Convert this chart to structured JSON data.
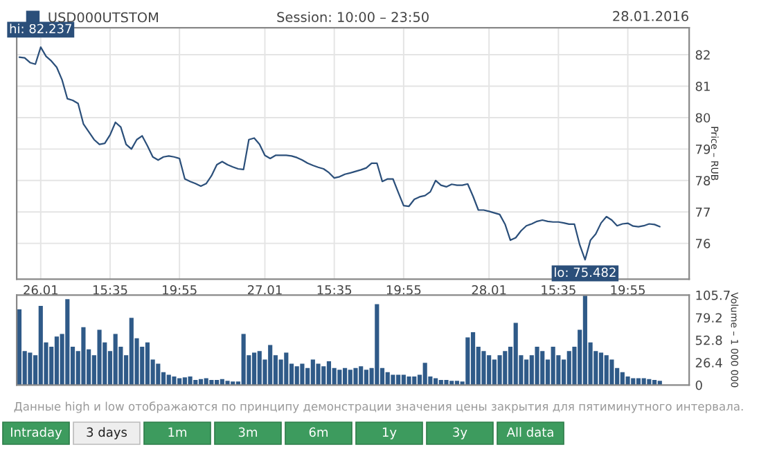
{
  "chart_data": [
    {
      "type": "line",
      "title": "Session: 10:00 – 23:50",
      "legend": "top left",
      "grid": true,
      "ylabel": "Price – RUB",
      "categories": [
        null,
        null,
        null,
        null,
        "26.01",
        null,
        null,
        null,
        null,
        null,
        null,
        null,
        null,
        null,
        null,
        null,
        null,
        "15:35",
        null,
        null,
        null,
        null,
        null,
        null,
        null,
        null,
        null,
        null,
        null,
        null,
        "19:55",
        null,
        null,
        null,
        null,
        null,
        null,
        null,
        null,
        null,
        null,
        null,
        null,
        null,
        null,
        null,
        "27.01",
        null,
        null,
        null,
        null,
        null,
        null,
        null,
        null,
        null,
        null,
        null,
        null,
        "15:35",
        null,
        null,
        null,
        null,
        null,
        null,
        null,
        null,
        null,
        null,
        null,
        null,
        "19:55",
        null,
        null,
        null,
        null,
        null,
        null,
        null,
        null,
        null,
        null,
        null,
        null,
        null,
        null,
        null,
        "28.01",
        null,
        null,
        null,
        null,
        null,
        null,
        null,
        null,
        null,
        null,
        null,
        null,
        "15:35",
        null,
        null,
        null,
        null,
        null,
        null,
        null,
        null,
        null,
        null,
        null,
        null,
        "19:55",
        null,
        null,
        null,
        null,
        null,
        null,
        null,
        null,
        null,
        null,
        null
      ],
      "series": [
        {
          "name": "USD000UTSTOM",
          "color": "#2b4f7a",
          "values": [
            81.92,
            81.9,
            81.75,
            81.7,
            82.24,
            81.95,
            81.8,
            81.6,
            81.2,
            80.6,
            80.55,
            80.45,
            79.8,
            79.55,
            79.3,
            79.15,
            79.18,
            79.45,
            79.85,
            79.7,
            79.15,
            79.0,
            79.3,
            79.42,
            79.1,
            78.75,
            78.65,
            78.75,
            78.78,
            78.75,
            78.7,
            78.05,
            77.97,
            77.9,
            77.82,
            77.9,
            78.15,
            78.5,
            78.6,
            78.5,
            78.43,
            78.37,
            78.35,
            79.3,
            79.35,
            79.15,
            78.8,
            78.7,
            78.8,
            78.8,
            78.8,
            78.78,
            78.73,
            78.65,
            78.55,
            78.48,
            78.42,
            78.37,
            78.25,
            78.08,
            78.12,
            78.2,
            78.24,
            78.29,
            78.34,
            78.4,
            78.55,
            78.55,
            77.97,
            78.05,
            78.05,
            77.62,
            77.2,
            77.18,
            77.4,
            77.48,
            77.52,
            77.64,
            78.0,
            77.85,
            77.8,
            77.88,
            77.85,
            77.85,
            77.89,
            77.5,
            77.06,
            77.06,
            77.02,
            76.97,
            76.92,
            76.61,
            76.1,
            76.18,
            76.4,
            76.56,
            76.62,
            76.7,
            76.74,
            76.7,
            76.68,
            76.68,
            76.65,
            76.61,
            76.61,
            75.95,
            75.48,
            76.1,
            76.3,
            76.65,
            76.85,
            76.74,
            76.56,
            76.62,
            76.64,
            76.55,
            76.53,
            76.56,
            76.62,
            76.6,
            76.53,
            null,
            null,
            null,
            null,
            null
          ]
        }
      ],
      "ylim": [
        74.86,
        82.86
      ],
      "yticks": [
        76,
        77,
        78,
        79,
        80,
        81,
        82
      ],
      "annotations": [
        {
          "text": "hi: 82.237",
          "y": 82.237
        },
        {
          "text": "lo: 75.482",
          "y": 75.482
        },
        "28.01.2016",
        "Данные high и low отображаются по принципу демонстрации значения цены закрытия для пятиминутного интервала.",
        "Intraday",
        "3 days",
        "1m",
        "3m",
        "6m",
        "1y",
        "3y",
        "All data"
      ]
    },
    {
      "type": "bar",
      "tick_labels": "y",
      "ylabel": "Volume – 1 000 000",
      "categories": [
        null,
        null,
        null,
        null,
        null,
        null,
        null,
        null,
        null,
        null,
        null,
        null,
        null,
        null,
        null,
        null,
        null,
        null,
        null,
        null,
        null,
        null,
        null,
        null,
        null,
        null,
        null,
        null,
        null,
        null,
        null,
        null,
        null,
        null,
        null,
        null,
        null,
        null,
        null,
        null,
        null,
        null,
        null,
        null,
        null,
        null,
        null,
        null,
        null,
        null,
        null,
        null,
        null,
        null,
        null,
        null,
        null,
        null,
        null,
        null,
        null,
        null,
        null,
        null,
        null,
        null,
        null,
        null,
        null,
        null,
        null,
        null,
        null,
        null,
        null,
        null,
        null,
        null,
        null,
        null,
        null,
        null,
        null,
        null,
        null,
        null,
        null,
        null,
        null,
        null,
        null,
        null,
        null,
        null,
        null,
        null,
        null,
        null,
        null,
        null,
        null,
        null,
        null,
        null,
        null,
        null,
        null,
        null,
        null,
        null,
        null,
        null,
        null,
        null,
        null,
        null,
        null,
        null,
        null,
        null,
        null,
        null,
        null,
        null,
        null,
        null
      ],
      "series": [
        {
          "color": "#2f5a88",
          "values": [
            89,
            40,
            38,
            35,
            93,
            50,
            45,
            57,
            60,
            101,
            45,
            40,
            68,
            42,
            35,
            65,
            50,
            40,
            60,
            45,
            35,
            79,
            55,
            45,
            50,
            30,
            25,
            15,
            12,
            10,
            8,
            9,
            10,
            6,
            7,
            8,
            6,
            6,
            7,
            5,
            4,
            4,
            60,
            35,
            38,
            40,
            30,
            47,
            35,
            30,
            38,
            25,
            22,
            25,
            20,
            30,
            25,
            22,
            28,
            20,
            18,
            20,
            18,
            20,
            22,
            18,
            20,
            95,
            20,
            15,
            12,
            12,
            12,
            10,
            10,
            12,
            26,
            10,
            8,
            6,
            6,
            5,
            5,
            4,
            56,
            62,
            45,
            40,
            35,
            30,
            35,
            40,
            45,
            73,
            35,
            30,
            35,
            45,
            40,
            30,
            45,
            35,
            30,
            40,
            45,
            65,
            105,
            50,
            40,
            38,
            35,
            30,
            20,
            15,
            10,
            8,
            8,
            8,
            7,
            6,
            5,
            null,
            null,
            null,
            null,
            null
          ]
        }
      ],
      "ylim": [
        0,
        105.7
      ],
      "yticks": [
        0,
        26.4,
        52.8,
        79.2,
        105.7
      ]
    }
  ]
}
